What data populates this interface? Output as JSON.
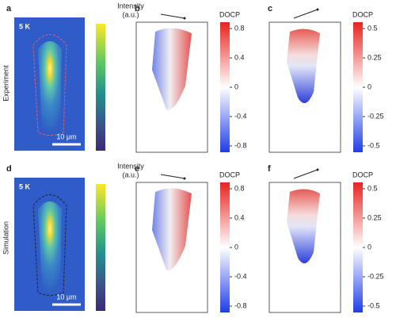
{
  "row_labels": [
    "Experiment",
    "Simulation"
  ],
  "panels": [
    {
      "label": "a",
      "temperature": "5 K",
      "scale_bar": "10 μm",
      "colorbar": {
        "title": "Intensity",
        "unit": "(a.u.)"
      }
    },
    {
      "label": "b",
      "colorbar": {
        "title": "DOCP",
        "ticks": [
          0.8,
          0.4,
          0,
          -0.4,
          -0.8
        ]
      }
    },
    {
      "label": "c",
      "colorbar": {
        "title": "DOCP",
        "ticks": [
          0.5,
          0.25,
          0,
          -0.25,
          -0.5
        ]
      }
    },
    {
      "label": "d",
      "temperature": "5 K",
      "scale_bar": "10 μm",
      "colorbar": {
        "title": "Intensity",
        "unit": "(a.u.)"
      }
    },
    {
      "label": "e",
      "colorbar": {
        "title": "DOCP",
        "ticks": [
          0.8,
          0.4,
          0,
          -0.4,
          -0.8
        ]
      }
    },
    {
      "label": "f",
      "colorbar": {
        "title": "DOCP",
        "ticks": [
          0.5,
          0.25,
          0,
          -0.25,
          -0.5
        ]
      }
    }
  ]
}
